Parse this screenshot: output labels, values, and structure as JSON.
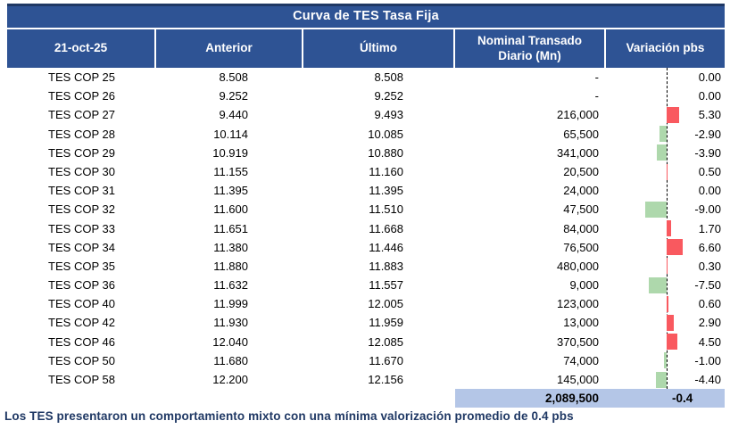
{
  "table": {
    "title": "Curva de TES Tasa Fija",
    "header": {
      "date": "21-oct-25",
      "anterior": "Anterior",
      "ultimo": "Último",
      "nominal": "Nominal Transado Diario (Mn)",
      "variacion": "Variación pbs"
    },
    "rows": [
      {
        "name": "TES COP 25",
        "anterior": "8.508",
        "ultimo": "8.508",
        "nominal": "-",
        "variacion": "0.00",
        "variacion_value": 0.0
      },
      {
        "name": "TES COP 26",
        "anterior": "9.252",
        "ultimo": "9.252",
        "nominal": "-",
        "variacion": "0.00",
        "variacion_value": 0.0
      },
      {
        "name": "TES COP 27",
        "anterior": "9.440",
        "ultimo": "9.493",
        "nominal": "216,000",
        "variacion": "5.30",
        "variacion_value": 5.3
      },
      {
        "name": "TES COP 28",
        "anterior": "10.114",
        "ultimo": "10.085",
        "nominal": "65,500",
        "variacion": "-2.90",
        "variacion_value": -2.9
      },
      {
        "name": "TES COP 29",
        "anterior": "10.919",
        "ultimo": "10.880",
        "nominal": "341,000",
        "variacion": "-3.90",
        "variacion_value": -3.9
      },
      {
        "name": "TES COP 30",
        "anterior": "11.155",
        "ultimo": "11.160",
        "nominal": "20,500",
        "variacion": "0.50",
        "variacion_value": 0.5
      },
      {
        "name": "TES COP 31",
        "anterior": "11.395",
        "ultimo": "11.395",
        "nominal": "24,000",
        "variacion": "0.00",
        "variacion_value": 0.0
      },
      {
        "name": "TES COP 32",
        "anterior": "11.600",
        "ultimo": "11.510",
        "nominal": "47,500",
        "variacion": "-9.00",
        "variacion_value": -9.0
      },
      {
        "name": "TES COP 33",
        "anterior": "11.651",
        "ultimo": "11.668",
        "nominal": "84,000",
        "variacion": "1.70",
        "variacion_value": 1.7
      },
      {
        "name": "TES COP 34",
        "anterior": "11.380",
        "ultimo": "11.446",
        "nominal": "76,500",
        "variacion": "6.60",
        "variacion_value": 6.6
      },
      {
        "name": "TES COP 35",
        "anterior": "11.880",
        "ultimo": "11.883",
        "nominal": "480,000",
        "variacion": "0.30",
        "variacion_value": 0.3
      },
      {
        "name": "TES COP 36",
        "anterior": "11.632",
        "ultimo": "11.557",
        "nominal": "9,000",
        "variacion": "-7.50",
        "variacion_value": -7.5
      },
      {
        "name": "TES COP 40",
        "anterior": "11.999",
        "ultimo": "12.005",
        "nominal": "123,000",
        "variacion": "0.60",
        "variacion_value": 0.6
      },
      {
        "name": "TES COP 42",
        "anterior": "11.930",
        "ultimo": "11.959",
        "nominal": "13,000",
        "variacion": "2.90",
        "variacion_value": 2.9
      },
      {
        "name": "TES COP 46",
        "anterior": "12.040",
        "ultimo": "12.085",
        "nominal": "370,500",
        "variacion": "4.50",
        "variacion_value": 4.5
      },
      {
        "name": "TES COP 50",
        "anterior": "11.680",
        "ultimo": "11.670",
        "nominal": "74,000",
        "variacion": "-1.00",
        "variacion_value": -1.0
      },
      {
        "name": "TES COP 58",
        "anterior": "12.200",
        "ultimo": "12.156",
        "nominal": "145,000",
        "variacion": "-4.40",
        "variacion_value": -4.4
      }
    ],
    "total": {
      "nominal": "2,089,500",
      "variacion": "-0.4"
    }
  },
  "footer": {
    "text": "Los TES presentaron un comportamiento mixto con una mínima valorización promedio de 0.4 pbs"
  },
  "colors": {
    "header_blue": "#2E5394",
    "top_border_navy": "#1F3864",
    "total_row_bg": "#B4C6E7",
    "bar_positive": "#F9595F",
    "bar_negative": "#AED8AC",
    "zero_line": "#000000",
    "footer_text": "#1F3864"
  },
  "chart_data": {
    "type": "table",
    "title": "Curva de TES Tasa Fija",
    "columns": [
      "21-oct-25",
      "Anterior",
      "Último",
      "Nominal Transado Diario (Mn)",
      "Variación pbs"
    ],
    "rows": [
      [
        "TES COP 25",
        "8.508",
        "8.508",
        "-",
        "0.00"
      ],
      [
        "TES COP 26",
        "9.252",
        "9.252",
        "-",
        "0.00"
      ],
      [
        "TES COP 27",
        "9.440",
        "9.493",
        "216,000",
        "5.30"
      ],
      [
        "TES COP 28",
        "10.114",
        "10.085",
        "65,500",
        "-2.90"
      ],
      [
        "TES COP 29",
        "10.919",
        "10.880",
        "341,000",
        "-3.90"
      ],
      [
        "TES COP 30",
        "11.155",
        "11.160",
        "20,500",
        "0.50"
      ],
      [
        "TES COP 31",
        "11.395",
        "11.395",
        "24,000",
        "0.00"
      ],
      [
        "TES COP 32",
        "11.600",
        "11.510",
        "47,500",
        "-9.00"
      ],
      [
        "TES COP 33",
        "11.651",
        "11.668",
        "84,000",
        "1.70"
      ],
      [
        "TES COP 34",
        "11.380",
        "11.446",
        "76,500",
        "6.60"
      ],
      [
        "TES COP 35",
        "11.880",
        "11.883",
        "480,000",
        "0.30"
      ],
      [
        "TES COP 36",
        "11.632",
        "11.557",
        "9,000",
        "-7.50"
      ],
      [
        "TES COP 40",
        "11.999",
        "12.005",
        "123,000",
        "0.60"
      ],
      [
        "TES COP 42",
        "11.930",
        "11.959",
        "13,000",
        "2.90"
      ],
      [
        "TES COP 46",
        "12.040",
        "12.085",
        "370,500",
        "4.50"
      ],
      [
        "TES COP 50",
        "11.680",
        "11.670",
        "74,000",
        "-1.00"
      ],
      [
        "TES COP 58",
        "12.200",
        "12.156",
        "145,000",
        "-4.40"
      ]
    ],
    "totals": {
      "nominal_transado_diario_mn": "2,089,500",
      "variacion_promedio_pbs": "-0.4"
    },
    "embedded_bar_chart": {
      "column": "Variación pbs",
      "categories": [
        "TES COP 25",
        "TES COP 26",
        "TES COP 27",
        "TES COP 28",
        "TES COP 29",
        "TES COP 30",
        "TES COP 31",
        "TES COP 32",
        "TES COP 33",
        "TES COP 34",
        "TES COP 35",
        "TES COP 36",
        "TES COP 40",
        "TES COP 42",
        "TES COP 46",
        "TES COP 50",
        "TES COP 58"
      ],
      "values": [
        0.0,
        0.0,
        5.3,
        -2.9,
        -3.9,
        0.5,
        0.0,
        -9.0,
        1.7,
        6.6,
        0.3,
        -7.5,
        0.6,
        2.9,
        4.5,
        -1.0,
        -4.4
      ],
      "orientation": "horizontal",
      "positive_color": "#F9595F",
      "negative_color": "#AED8AC",
      "zero_axis": "dashed-black"
    }
  }
}
